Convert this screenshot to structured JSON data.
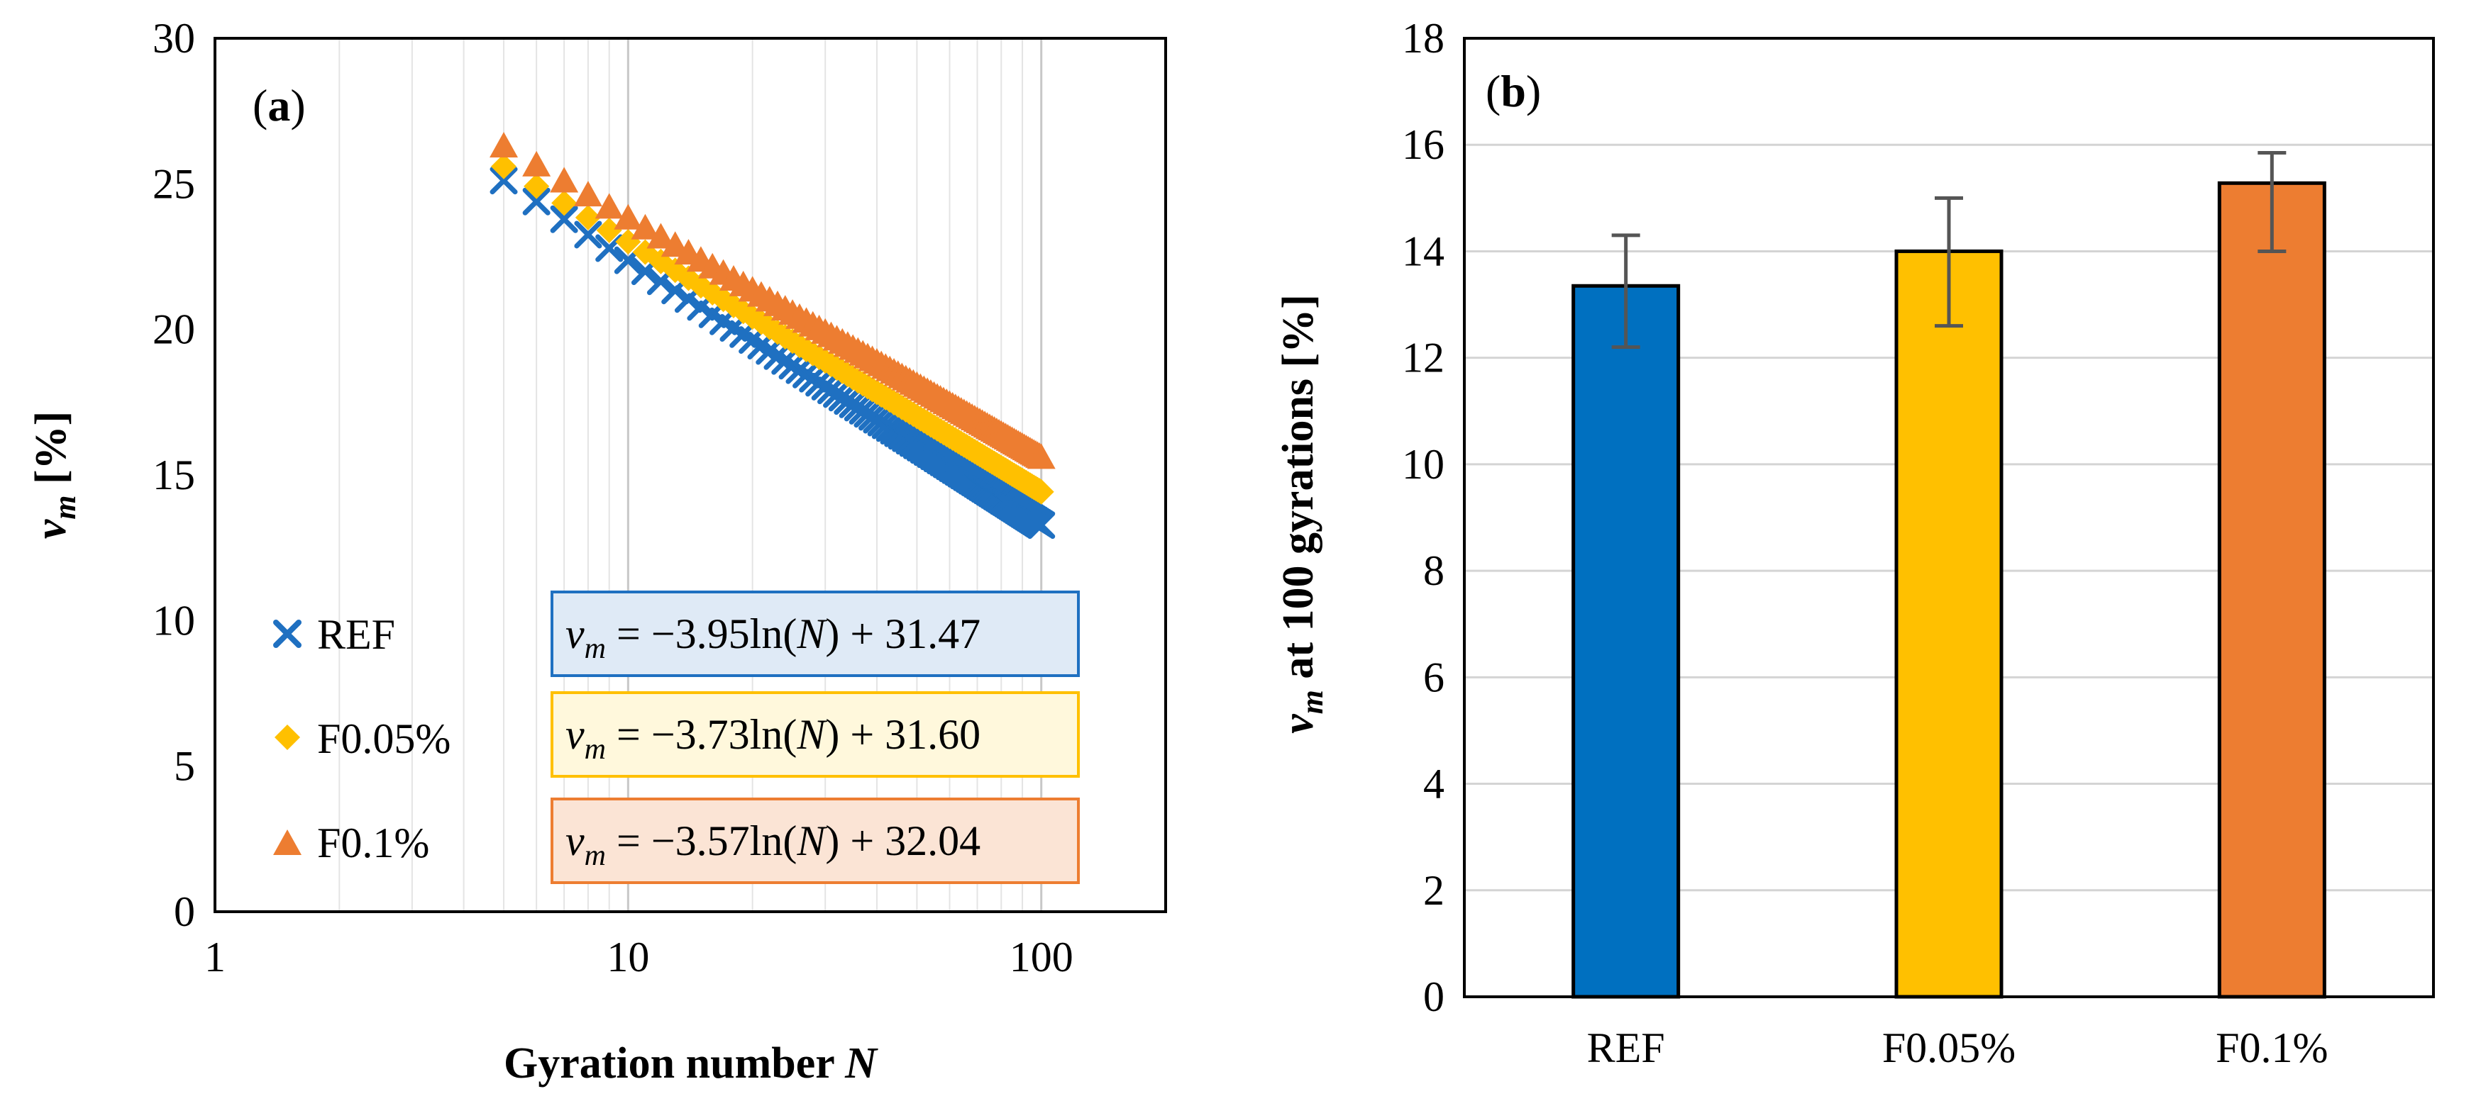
{
  "chart_data": [
    {
      "type": "scatter",
      "panel_label": "a",
      "xscale": "log",
      "xlabel": "Gyration number",
      "xlabel_italic": "N",
      "ylabel_var": "v",
      "ylabel_sub": "m",
      "ylabel_unit": "[%]",
      "xlim": [
        1,
        200
      ],
      "ylim": [
        0,
        30
      ],
      "x_ticks": [
        1,
        10,
        100
      ],
      "y_ticks": [
        0,
        5,
        10,
        15,
        20,
        25,
        30
      ],
      "grid": true,
      "x_range": [
        5,
        100
      ],
      "series": [
        {
          "name": "REF",
          "marker": "x",
          "color": "#1f70c1",
          "slope": -3.95,
          "intercept": 31.47,
          "equation": {
            "var": "v",
            "sub": "m",
            "body": " = −3.95ln(",
            "arg": "N",
            "tail": ") + 31.47"
          },
          "box_fill": "#dfeaf6"
        },
        {
          "name": "F0.05%",
          "marker": "diamond",
          "color": "#ffc000",
          "slope": -3.73,
          "intercept": 31.6,
          "equation": {
            "var": "v",
            "sub": "m",
            "body": " = −3.73ln(",
            "arg": "N",
            "tail": ") + 31.60"
          },
          "box_fill": "#fff8dc"
        },
        {
          "name": "F0.1%",
          "marker": "triangle",
          "color": "#ed7d31",
          "slope": -3.57,
          "intercept": 32.04,
          "equation": {
            "var": "v",
            "sub": "m",
            "body": " = −3.57ln(",
            "arg": "N",
            "tail": ") + 32.04"
          },
          "box_fill": "#fbe4d5"
        }
      ]
    },
    {
      "type": "bar",
      "panel_label": "b",
      "ylabel_var": "v",
      "ylabel_sub": "m",
      "ylabel_rest": " at 100 gyrations [%]",
      "ylim": [
        0,
        18
      ],
      "y_ticks": [
        0,
        2,
        4,
        6,
        8,
        10,
        12,
        14,
        16,
        18
      ],
      "grid": true,
      "categories": [
        "REF",
        "F0.05%",
        "F0.1%"
      ],
      "values": [
        13.35,
        14.0,
        15.28
      ],
      "error_low": [
        12.2,
        12.6,
        14.0
      ],
      "error_high": [
        14.3,
        15.0,
        15.85
      ],
      "colors": [
        "#0070c0",
        "#ffc000",
        "#ed7d31"
      ]
    }
  ]
}
